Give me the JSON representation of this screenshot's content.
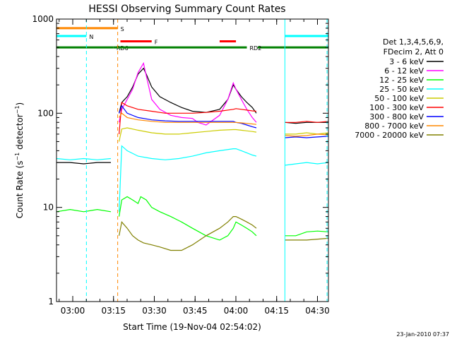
{
  "chart_data": {
    "type": "line",
    "title": "HESSI Observing Summary Count Rates",
    "xlabel": "Start Time (19-Nov-04 02:54:02)",
    "ylabel": "Count Rate (s⁻¹ detector⁻¹)",
    "ylabel_parts": {
      "main": "Count Rate (s",
      "sup1": "−1",
      "mid": " detector",
      "sup2": "−1",
      "end": ")"
    },
    "y_scale": "log",
    "ylim": [
      1,
      1000
    ],
    "x_unit": "minutes since 02:54:02",
    "xlim": [
      0,
      100
    ],
    "x_ticks": [
      {
        "label": "03:00",
        "value": 5.97
      },
      {
        "label": "03:15",
        "value": 20.97
      },
      {
        "label": "03:30",
        "value": 35.97
      },
      {
        "label": "03:45",
        "value": 50.97
      },
      {
        "label": "04:00",
        "value": 65.97
      },
      {
        "label": "04:15",
        "value": 80.97
      },
      {
        "label": "04:30",
        "value": 95.97
      }
    ],
    "y_ticks": [
      {
        "label": "1",
        "value": 1
      },
      {
        "label": "10",
        "value": 10
      },
      {
        "label": "100",
        "value": 100
      },
      {
        "label": "1000",
        "value": 1000
      }
    ],
    "legend": {
      "position": "right",
      "header": [
        "Det 1,3,4,5,6,9,",
        "FDecim 2, Att 0"
      ],
      "entries": [
        {
          "label": "3 - 6 keV",
          "color": "#000000"
        },
        {
          "label": "6 - 12 keV",
          "color": "#ff00ff"
        },
        {
          "label": "12 - 25 keV",
          "color": "#00ff00"
        },
        {
          "label": "25 - 50 keV",
          "color": "#00ffff"
        },
        {
          "label": "50 - 100 keV",
          "color": "#cccc00"
        },
        {
          "label": "100 - 300 keV",
          "color": "#ff0000"
        },
        {
          "label": "300 - 800 keV",
          "color": "#0000ff"
        },
        {
          "label": "800 - 7000 keV",
          "color": "#ff8800"
        },
        {
          "label": "7000 - 20000 keV",
          "color": "#808000"
        }
      ]
    },
    "series": [
      {
        "name": "3 - 6 keV",
        "color": "#000000",
        "x": [
          23,
          24,
          26,
          28,
          30,
          32,
          33,
          35,
          38,
          42,
          46,
          50,
          55,
          60,
          63,
          65,
          66,
          68,
          70,
          72,
          73.5
        ],
        "y": [
          100,
          130,
          150,
          190,
          260,
          300,
          260,
          190,
          150,
          130,
          115,
          105,
          102,
          110,
          140,
          200,
          180,
          150,
          130,
          115,
          100
        ]
      },
      {
        "name": "6 - 12 keV",
        "color": "#ff00ff",
        "x": [
          23,
          24,
          26,
          28,
          30,
          32,
          33,
          35,
          38,
          42,
          46,
          50,
          52,
          55,
          60,
          63,
          65,
          66,
          68,
          70,
          72,
          73.5
        ],
        "y": [
          80,
          110,
          140,
          180,
          270,
          340,
          250,
          140,
          110,
          95,
          90,
          88,
          80,
          75,
          95,
          140,
          210,
          180,
          140,
          110,
          90,
          80
        ]
      },
      {
        "name": "12 - 25 keV",
        "color": "#00ff00",
        "x": [
          23,
          24,
          26,
          28,
          30,
          31,
          33,
          35,
          38,
          42,
          46,
          50,
          55,
          60,
          63,
          65,
          66,
          68,
          70,
          72,
          73.5
        ],
        "y": [
          8,
          12,
          13,
          12,
          11,
          13,
          12,
          10,
          9,
          8,
          7,
          6,
          5,
          4.5,
          5,
          6,
          7,
          6.5,
          6,
          5.5,
          5
        ]
      },
      {
        "name": "25 - 50 keV",
        "color": "#00ffff",
        "x": [
          23,
          24,
          26,
          30,
          35,
          40,
          45,
          50,
          55,
          60,
          65,
          66,
          68,
          70,
          72,
          73.5
        ],
        "y": [
          9,
          45,
          40,
          35,
          33,
          32,
          33,
          35,
          38,
          40,
          42,
          42,
          40,
          38,
          36,
          35
        ]
      },
      {
        "name": "50 - 100 keV",
        "color": "#cccc00",
        "x": [
          23,
          24,
          26,
          30,
          35,
          40,
          45,
          50,
          55,
          60,
          65,
          66,
          68,
          70,
          72,
          73.5
        ],
        "y": [
          50,
          68,
          70,
          66,
          62,
          60,
          60,
          62,
          64,
          66,
          67,
          67,
          66,
          65,
          64,
          63
        ]
      },
      {
        "name": "100 - 300 keV",
        "color": "#ff0000",
        "x": [
          23,
          24,
          26,
          30,
          35,
          40,
          45,
          50,
          55,
          60,
          65,
          66,
          68,
          70,
          72,
          73.5
        ],
        "y": [
          60,
          130,
          120,
          110,
          105,
          100,
          100,
          100,
          102,
          105,
          110,
          112,
          110,
          108,
          106,
          105
        ]
      },
      {
        "name": "300 - 800 keV",
        "color": "#0000ff",
        "x": [
          23,
          24,
          26,
          30,
          35,
          40,
          45,
          50,
          55,
          60,
          65,
          66,
          68,
          70,
          72,
          73.5
        ],
        "y": [
          100,
          120,
          100,
          90,
          85,
          83,
          82,
          82,
          82,
          82,
          82,
          80,
          78,
          75,
          72,
          70
        ]
      },
      {
        "name": "800 - 7000 keV",
        "color": "#ff8800",
        "x": [
          23,
          24,
          26,
          30,
          35,
          40,
          45,
          50,
          55,
          60,
          65,
          66,
          68,
          70,
          72,
          73.5
        ],
        "y": [
          90,
          100,
          90,
          85,
          82,
          80,
          80,
          80,
          80,
          80,
          80,
          80,
          79,
          78,
          77,
          76
        ]
      },
      {
        "name": "7000 - 20000 keV",
        "color": "#808000",
        "x": [
          23,
          24,
          26,
          28,
          30,
          32,
          35,
          38,
          42,
          46,
          50,
          55,
          60,
          63,
          65,
          66,
          68,
          70,
          72,
          73.5
        ],
        "y": [
          5,
          7,
          6,
          5,
          4.5,
          4.2,
          4,
          3.8,
          3.5,
          3.5,
          4,
          5,
          6,
          7,
          8,
          8,
          7.5,
          7,
          6.5,
          6
        ]
      },
      {
        "name": "3 - 6 keV (late)",
        "color": "#000000",
        "x": [
          84,
          88,
          92,
          96,
          100
        ],
        "y": [
          80,
          78,
          80,
          80,
          80
        ]
      },
      {
        "name": "100 - 300 keV (late)",
        "color": "#ff0000",
        "x": [
          84,
          88,
          92,
          96,
          100
        ],
        "y": [
          80,
          80,
          82,
          80,
          82
        ]
      },
      {
        "name": "50 - 100 keV (late)",
        "color": "#cccc00",
        "x": [
          84,
          88,
          92,
          96,
          100
        ],
        "y": [
          60,
          60,
          62,
          60,
          62
        ]
      },
      {
        "name": "300 - 800 keV (late)",
        "color": "#0000ff",
        "x": [
          84,
          88,
          92,
          96,
          100
        ],
        "y": [
          55,
          56,
          55,
          56,
          57
        ]
      },
      {
        "name": "800 - 7000 keV (late)",
        "color": "#ff8800",
        "x": [
          84,
          88,
          92,
          96,
          100
        ],
        "y": [
          58,
          57,
          58,
          60,
          59
        ]
      },
      {
        "name": "25 - 50 keV (late)",
        "color": "#00ffff",
        "x": [
          84,
          88,
          92,
          96,
          100
        ],
        "y": [
          28,
          29,
          30,
          29,
          30
        ]
      },
      {
        "name": "7000 - 20000 keV (late)",
        "color": "#808000",
        "x": [
          84,
          88,
          92,
          96,
          100
        ],
        "y": [
          4.5,
          4.5,
          4.5,
          4.6,
          4.7
        ]
      },
      {
        "name": "12 - 25 keV (late)",
        "color": "#00ff00",
        "x": [
          84,
          88,
          92,
          96,
          100
        ],
        "y": [
          5,
          5,
          5.5,
          5.6,
          5.5
        ]
      },
      {
        "name": "3 - 6 keV (early)",
        "color": "#000000",
        "x": [
          0,
          5,
          10,
          15,
          20
        ],
        "y": [
          30,
          30,
          29,
          30,
          30
        ]
      },
      {
        "name": "25 - 50 keV (early)",
        "color": "#00ffff",
        "x": [
          0,
          5,
          10,
          15,
          20
        ],
        "y": [
          33,
          32,
          33,
          32,
          33
        ]
      },
      {
        "name": "12 - 25 keV (early)",
        "color": "#00ff00",
        "x": [
          0,
          5,
          10,
          15,
          20
        ],
        "y": [
          9,
          9.5,
          9,
          9.5,
          9
        ]
      }
    ],
    "flags": [
      {
        "label": "S",
        "color": "#ff8800",
        "y_level": 800,
        "segments": [
          [
            0,
            22.5
          ]
        ]
      },
      {
        "label": "N",
        "color": "#00ffff",
        "y_level": 660,
        "segments": [
          [
            0,
            11
          ],
          [
            84,
            100
          ]
        ]
      },
      {
        "label": "RD6",
        "color": "#008000",
        "y_level": 500,
        "segments": [
          [
            0,
            21
          ]
        ]
      },
      {
        "label": "RD2",
        "color": "#008000",
        "y_level": 500,
        "segments": [
          [
            21,
            70
          ],
          [
            74,
            100
          ]
        ]
      },
      {
        "label": "F",
        "color": "#ff0000",
        "y_level": 580,
        "segments": [
          [
            23.5,
            35
          ],
          [
            60,
            66
          ]
        ]
      }
    ],
    "vlines": [
      {
        "x": 11,
        "color": "#00ffff",
        "style": "dashed"
      },
      {
        "x": 22.5,
        "color": "#ff8800",
        "style": "dashed"
      },
      {
        "x": 84,
        "color": "#00ffff",
        "style": "solid"
      },
      {
        "x": 99.5,
        "color": "#00ffff",
        "style": "dashed"
      }
    ],
    "grid": false
  },
  "footer": {
    "timestamp": "23-Jan-2010 07:37"
  }
}
